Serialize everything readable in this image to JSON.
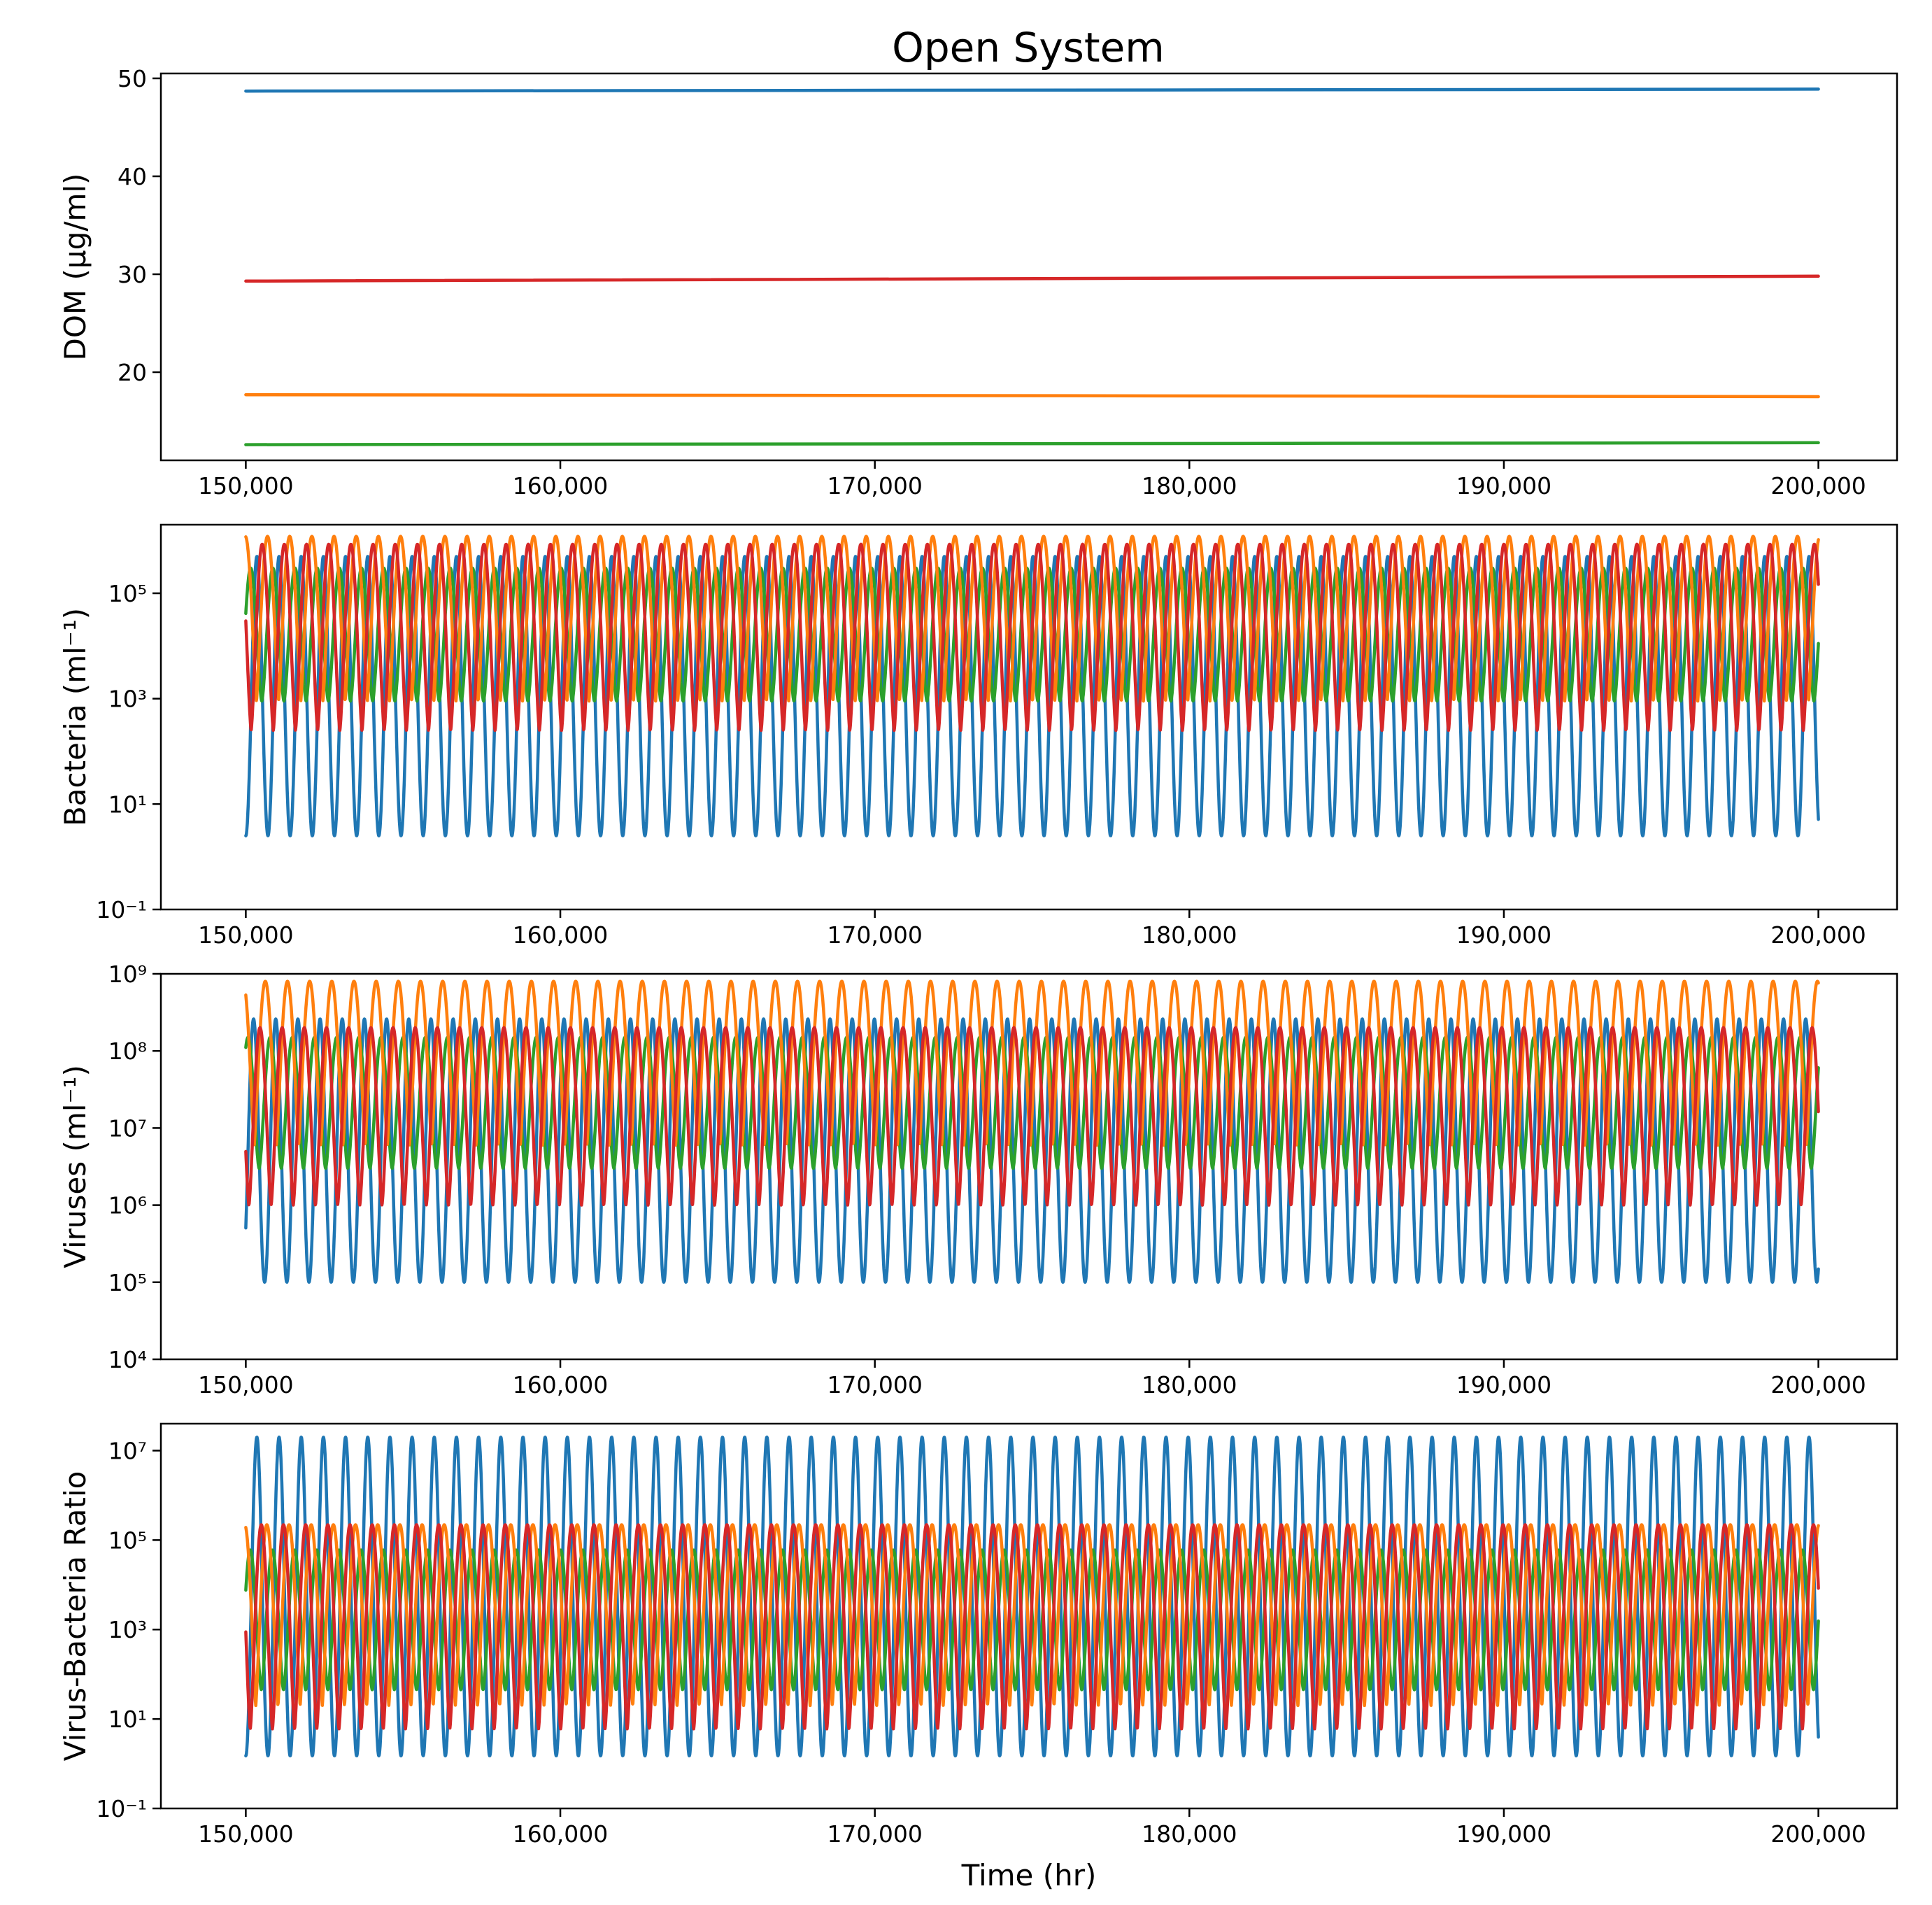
{
  "figure": {
    "title": "Open System"
  },
  "colors": {
    "c0": "#1f77b4",
    "c1": "#ff7f0e",
    "c2": "#2ca02c",
    "c3": "#d62728"
  },
  "chart_data": [
    {
      "type": "line",
      "ylabel": "DOM (μg/ml)",
      "xlabel": "",
      "xlim": [
        147300,
        202500
      ],
      "ylim": [
        11,
        50.5
      ],
      "yscale": "linear",
      "x_ticks": [
        150000,
        160000,
        170000,
        180000,
        190000,
        200000
      ],
      "x_tick_labels": [
        "150,000",
        "160,000",
        "170,000",
        "180,000",
        "190,000",
        "200,000"
      ],
      "y_ticks": [
        20,
        30,
        40,
        50
      ],
      "y_tick_labels": [
        "20",
        "30",
        "40",
        "50"
      ],
      "grid": false,
      "series": [
        {
          "color": "#1f77b4",
          "x": [
            150000,
            200000
          ],
          "y": [
            48.7,
            48.9
          ]
        },
        {
          "color": "#ff7f0e",
          "x": [
            150000,
            200000
          ],
          "y": [
            17.7,
            17.5
          ]
        },
        {
          "color": "#2ca02c",
          "x": [
            150000,
            200000
          ],
          "y": [
            12.6,
            12.8
          ]
        },
        {
          "color": "#d62728",
          "x": [
            150000,
            200000
          ],
          "y": [
            29.3,
            29.8
          ]
        }
      ]
    },
    {
      "type": "line",
      "ylabel": "Bacteria (ml⁻¹)",
      "xlabel": "",
      "xlim": [
        147300,
        202500
      ],
      "ylim": [
        0.1,
        2000000
      ],
      "yscale": "log",
      "x_ticks": [
        150000,
        160000,
        170000,
        180000,
        190000,
        200000
      ],
      "x_tick_labels": [
        "150,000",
        "160,000",
        "170,000",
        "180,000",
        "190,000",
        "200,000"
      ],
      "y_ticks": [
        0.1,
        10,
        1000,
        100000
      ],
      "y_tick_labels": [
        "10⁻¹",
        "10¹",
        "10³",
        "10⁵"
      ],
      "grid": false,
      "oscillation": {
        "x_start": 150000,
        "x_end": 200000,
        "period": 705
      },
      "series": [
        {
          "color": "#1f77b4",
          "min": 2.5,
          "max": 500000,
          "phase": 0.0,
          "shape": 1.0
        },
        {
          "color": "#2ca02c",
          "min": 900,
          "max": 300000,
          "phase": 0.28,
          "shape": 0.8
        },
        {
          "color": "#ff7f0e",
          "min": 900,
          "max": 1200000,
          "phase": 0.52,
          "shape": 0.6
        },
        {
          "color": "#d62728",
          "min": 250,
          "max": 850000,
          "phase": 0.76,
          "shape": 0.7
        }
      ]
    },
    {
      "type": "line",
      "ylabel": "Viruses (ml⁻¹)",
      "xlabel": "",
      "xlim": [
        147300,
        202500
      ],
      "ylim": [
        10000,
        1000000000
      ],
      "yscale": "log",
      "x_ticks": [
        150000,
        160000,
        170000,
        180000,
        190000,
        200000
      ],
      "x_tick_labels": [
        "150,000",
        "160,000",
        "170,000",
        "180,000",
        "190,000",
        "200,000"
      ],
      "y_ticks": [
        10000,
        100000,
        1000000,
        10000000,
        100000000,
        1000000000
      ],
      "y_tick_labels": [
        "10⁴",
        "10⁵",
        "10⁶",
        "10⁷",
        "10⁸",
        "10⁹"
      ],
      "grid": false,
      "oscillation": {
        "x_start": 150000,
        "x_end": 200000,
        "period": 705
      },
      "series": [
        {
          "color": "#1f77b4",
          "min": 100000,
          "max": 260000000,
          "phase": 0.15,
          "shape": 1.0
        },
        {
          "color": "#2ca02c",
          "min": 3000000,
          "max": 150000000,
          "phase": 0.4,
          "shape": 0.8
        },
        {
          "color": "#ff7f0e",
          "min": 6000000,
          "max": 800000000,
          "phase": 0.62,
          "shape": 0.6
        },
        {
          "color": "#d62728",
          "min": 1000000,
          "max": 200000000,
          "phase": 0.86,
          "shape": 0.7
        }
      ]
    },
    {
      "type": "line",
      "ylabel": "Virus-Bacteria Ratio",
      "xlabel": "Time (hr)",
      "xlim": [
        147300,
        202500
      ],
      "ylim": [
        0.1,
        40000000
      ],
      "yscale": "log",
      "x_ticks": [
        150000,
        160000,
        170000,
        180000,
        190000,
        200000
      ],
      "x_tick_labels": [
        "150,000",
        "160,000",
        "170,000",
        "180,000",
        "190,000",
        "200,000"
      ],
      "y_ticks": [
        0.1,
        10,
        1000,
        100000,
        10000000
      ],
      "y_tick_labels": [
        "10⁻¹",
        "10¹",
        "10³",
        "10⁵",
        "10⁷"
      ],
      "grid": false,
      "oscillation": {
        "x_start": 150000,
        "x_end": 200000,
        "period": 705
      },
      "series": [
        {
          "color": "#1f77b4",
          "min": 1.5,
          "max": 20000000,
          "phase": 0.0,
          "shape": 1.0
        },
        {
          "color": "#2ca02c",
          "min": 45,
          "max": 60000,
          "phase": 0.3,
          "shape": 0.8
        },
        {
          "color": "#ff7f0e",
          "min": 20,
          "max": 220000,
          "phase": 0.55,
          "shape": 0.6
        },
        {
          "color": "#d62728",
          "min": 6,
          "max": 220000,
          "phase": 0.8,
          "shape": 0.7
        }
      ]
    }
  ]
}
